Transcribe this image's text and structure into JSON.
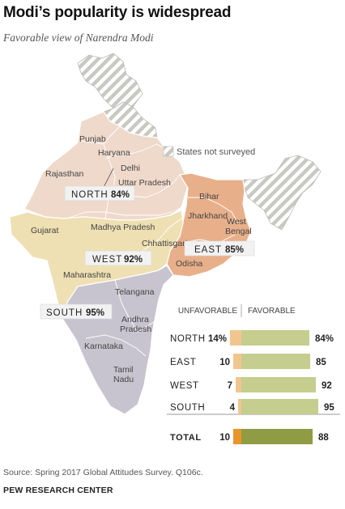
{
  "header": {
    "title": "Modi’s popularity is widespread",
    "subtitle": "Favorable view of Narendra Modi"
  },
  "map": {
    "legend_label": "States not surveyed",
    "states": {
      "punjab": "Punjab",
      "haryana": "Haryana",
      "delhi": "Delhi",
      "rajasthan": "Rajasthan",
      "uttar_pradesh": "Uttar Pradesh",
      "bihar": "Bihar",
      "jharkhand": "Jharkhand",
      "west_bengal_1": "West",
      "west_bengal_2": "Bengal",
      "gujarat": "Gujarat",
      "madhya_pradesh": "Madhya Pradesh",
      "chhattisgarh": "Chhattisgarh",
      "odisha": "Odisha",
      "maharashtra": "Maharashtra",
      "telangana": "Telangana",
      "andhra_1": "Andhra",
      "andhra_2": "Pradesh",
      "karnataka": "Karnataka",
      "tamil_1": "Tamil",
      "tamil_2": "Nadu"
    },
    "regions": {
      "north": {
        "name": "NORTH",
        "value": "84%"
      },
      "east": {
        "name": "EAST",
        "value": "85%"
      },
      "west": {
        "name": "WEST",
        "value": "92%"
      },
      "south": {
        "name": "SOUTH",
        "value": "95%"
      }
    },
    "colors": {
      "north": "#efd9cb",
      "east": "#e8b08a",
      "west": "#eee0b2",
      "south": "#c8c4cf",
      "hatch": "#c9c9c1"
    }
  },
  "chart_data": {
    "type": "bar",
    "categories": [
      "NORTH",
      "EAST",
      "WEST",
      "SOUTH",
      "TOTAL"
    ],
    "series": [
      {
        "name": "UNFAVORABLE",
        "values": [
          14,
          10,
          7,
          4,
          10
        ],
        "labels": [
          "14%",
          "10",
          "7",
          "4",
          "10"
        ]
      },
      {
        "name": "FAVORABLE",
        "values": [
          84,
          85,
          92,
          95,
          88
        ],
        "labels": [
          "84%",
          "85",
          "92",
          "95",
          "88"
        ]
      }
    ],
    "colors": {
      "unfavorable": "#f2c58f",
      "favorable": "#c5cd8f",
      "unfavorable_total": "#e8962b",
      "favorable_total": "#8f9c44"
    }
  },
  "footer": {
    "source": "Source: Spring 2017 Global Attitudes Survey. Q106c.",
    "org": "PEW RESEARCH CENTER"
  }
}
